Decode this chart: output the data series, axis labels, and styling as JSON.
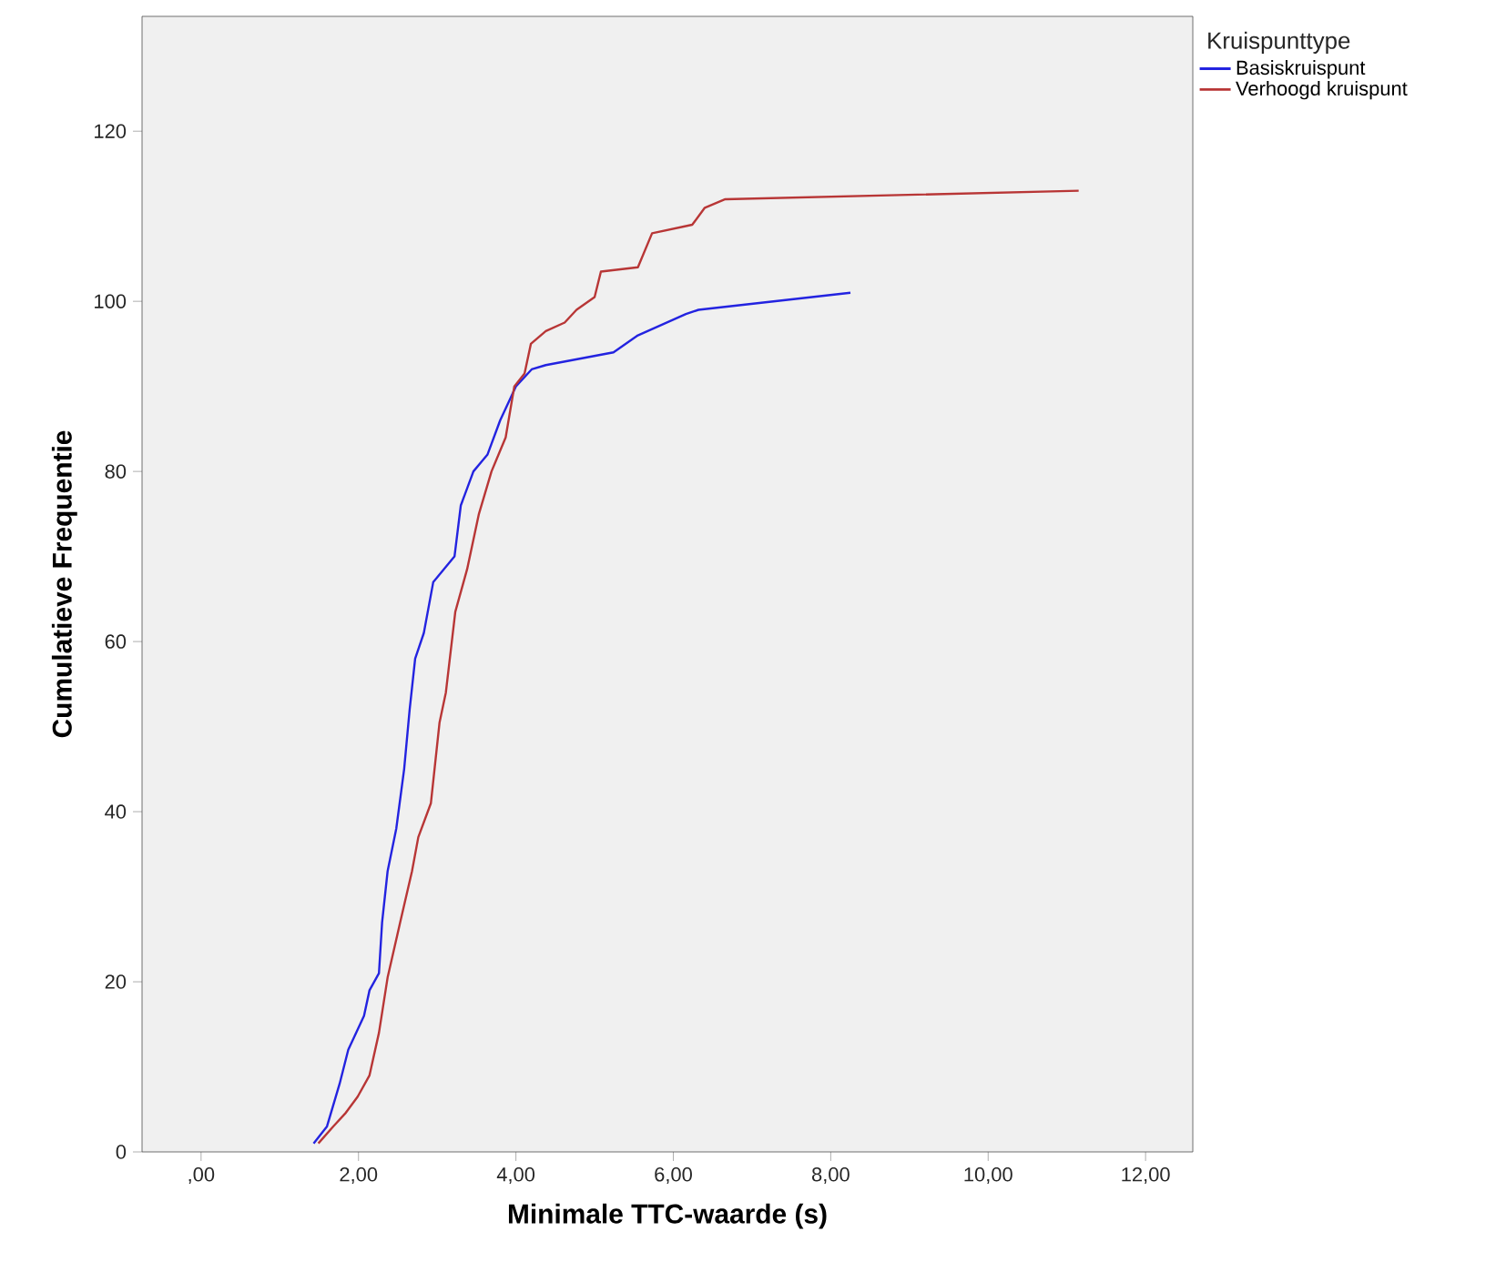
{
  "chart_data": {
    "type": "line",
    "xlabel": "Minimale TTC-waarde (s)",
    "ylabel": "Cumulatieve Frequentie",
    "legend_title": "Kruispunttype",
    "legend": "top right",
    "grid": false,
    "marker": "none",
    "line_style": "solid",
    "xlim": [
      -0.75,
      12.6
    ],
    "ylim": [
      0,
      133.5
    ],
    "xticks": [
      {
        "value": 0,
        "label": ",00"
      },
      {
        "value": 2,
        "label": "2,00"
      },
      {
        "value": 4,
        "label": "4,00"
      },
      {
        "value": 6,
        "label": "6,00"
      },
      {
        "value": 8,
        "label": "8,00"
      },
      {
        "value": 10,
        "label": "10,00"
      },
      {
        "value": 12,
        "label": "12,00"
      }
    ],
    "yticks": [
      0,
      20,
      40,
      60,
      80,
      100,
      120
    ],
    "series": [
      {
        "name": "Basiskruispunt",
        "color": "#2323e0",
        "x": [
          1.43,
          1.6,
          1.76,
          1.87,
          2.07,
          2.14,
          2.26,
          2.3,
          2.37,
          2.48,
          2.58,
          2.65,
          2.72,
          2.83,
          2.95,
          3.22,
          3.3,
          3.46,
          3.64,
          3.8,
          4.0,
          4.2,
          4.38,
          5.24,
          5.55,
          6.16,
          6.32,
          8.25
        ],
        "values": [
          1,
          3,
          8,
          12,
          16,
          19,
          21,
          27,
          33,
          38,
          45,
          52,
          58,
          61,
          67,
          70,
          76,
          80,
          82,
          86,
          90,
          92,
          92.5,
          94,
          96,
          98.5,
          99,
          101
        ]
      },
      {
        "name": "Verhoogd kruispunt",
        "color": "#b83636",
        "x": [
          1.49,
          1.68,
          1.83,
          1.99,
          2.14,
          2.26,
          2.37,
          2.53,
          2.68,
          2.76,
          2.92,
          3.03,
          3.11,
          3.23,
          3.38,
          3.53,
          3.69,
          3.87,
          3.98,
          4.11,
          4.19,
          4.38,
          4.62,
          4.77,
          5.0,
          5.08,
          5.55,
          5.73,
          6.24,
          6.4,
          6.66,
          11.15
        ],
        "values": [
          1,
          3,
          4.5,
          6.5,
          9,
          14,
          20.5,
          27,
          33,
          37,
          41,
          50.5,
          54,
          63.5,
          68.5,
          75,
          80,
          84,
          90,
          91.5,
          95,
          96.5,
          97.5,
          99,
          100.5,
          103.5,
          104,
          108,
          109,
          111,
          112,
          113
        ]
      }
    ]
  }
}
